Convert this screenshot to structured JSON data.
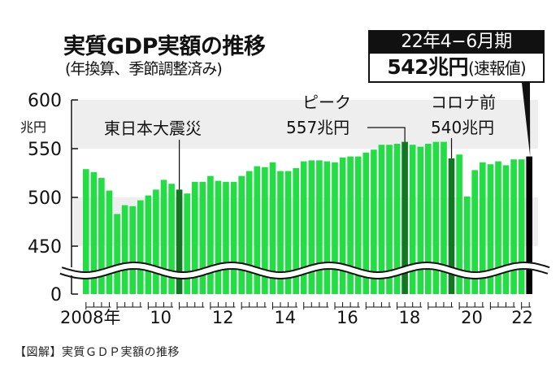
{
  "header": {
    "title": "実質GDP実額の推移",
    "subtitle": "(年換算、季節調整済み)"
  },
  "callout": {
    "period": "22年4−6月期",
    "value": "542兆円",
    "note": "(速報値)"
  },
  "footer": {
    "caption": "【図解】実質ＧＤＰ実額の推移"
  },
  "colors": {
    "bar": "#22dd44",
    "bar_highlight": "#117722",
    "bar_latest": "#000000",
    "band": "#eeeeee"
  },
  "chart_data": {
    "type": "bar",
    "title": "実質GDP実額の推移",
    "subtitle": "(年換算、季節調整済み)",
    "yunit": "兆円",
    "ylim": [
      0,
      600
    ],
    "axis_break": [
      0,
      420
    ],
    "yticks": [
      "600",
      "550",
      "500",
      "450",
      "0"
    ],
    "ytick_values": [
      600,
      550,
      500,
      450,
      0
    ],
    "xticks": [
      "2008年",
      "10",
      "12",
      "14",
      "16",
      "18",
      "20",
      "22"
    ],
    "xtick_years": [
      2008,
      2010,
      2012,
      2014,
      2016,
      2018,
      2020,
      2022
    ],
    "start_year": 2008,
    "start_quarter": 1,
    "values": [
      529,
      526,
      520,
      507,
      483,
      492,
      491,
      497,
      502,
      508,
      518,
      514,
      508,
      504,
      516,
      516,
      522,
      517,
      516,
      516,
      522,
      527,
      532,
      531,
      536,
      527,
      527,
      530,
      537,
      538,
      538,
      537,
      536,
      541,
      542,
      542,
      546,
      549,
      554,
      554,
      555,
      557,
      554,
      552,
      555,
      557,
      557,
      540,
      544,
      501,
      528,
      536,
      534,
      537,
      533,
      539,
      539,
      542
    ],
    "highlights": [
      {
        "index": 12,
        "label": "東日本大震災",
        "kind": "event"
      },
      {
        "index": 41,
        "label": "ピーク",
        "value_label": "557兆円",
        "kind": "peak"
      },
      {
        "index": 47,
        "label": "コロナ前",
        "value_label": "540兆円",
        "kind": "event"
      },
      {
        "index": 57,
        "label": "22年4−6月期",
        "value_label": "542兆円",
        "kind": "latest"
      }
    ]
  }
}
